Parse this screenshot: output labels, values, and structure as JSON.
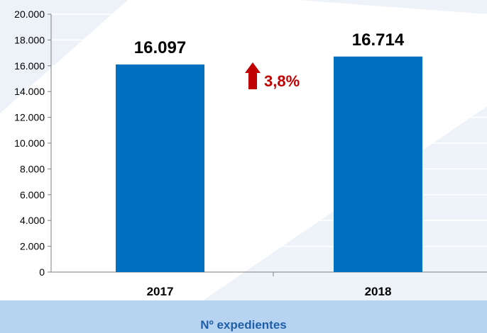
{
  "chart_data": {
    "type": "bar",
    "categories": [
      "2017",
      "2018"
    ],
    "values": [
      16097,
      16714
    ],
    "value_labels": [
      "16.097",
      "16.714"
    ],
    "ylim": [
      0,
      20000
    ],
    "y_ticks": [
      0,
      2000,
      4000,
      6000,
      8000,
      10000,
      12000,
      14000,
      16000,
      18000,
      20000
    ],
    "y_tick_labels": [
      "0",
      "2.000",
      "4.000",
      "6.000",
      "8.000",
      "10.000",
      "12.000",
      "14.000",
      "16.000",
      "18.000",
      "20.000"
    ],
    "grid": true,
    "annotation": {
      "text": "3,8%",
      "direction": "up",
      "color": "#c00000"
    },
    "bar_color": "#0070c0",
    "footer": "Nº expedientes"
  }
}
